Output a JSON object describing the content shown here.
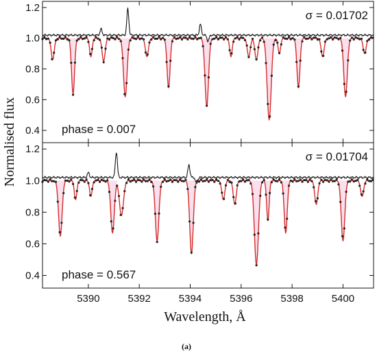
{
  "caption": "(a)",
  "x_axis_label": "Wavelength, Å",
  "y_axis_label": "Normalised flux",
  "chart_data": [
    {
      "type": "line",
      "panel": "top",
      "annotation_sigma": "σ = 0.01702",
      "annotation_phase": "phase = 0.007",
      "xlim": [
        5388.2,
        5401.2
      ],
      "ylim": [
        0.32,
        1.24
      ],
      "xticks": [
        5390,
        5392,
        5394,
        5396,
        5398,
        5400
      ],
      "yticks": [
        0.4,
        0.6,
        0.8,
        1.0,
        1.2
      ],
      "yticklabels": [
        "0.4",
        "0.6",
        "0.8",
        "1.0",
        "1.2"
      ],
      "continuum": 1.0,
      "residual_offset": 1.02,
      "lines": [
        {
          "x": 5388.6,
          "depth": 0.14,
          "w": 0.06
        },
        {
          "x": 5389.4,
          "depth": 0.36,
          "w": 0.06
        },
        {
          "x": 5390.1,
          "depth": 0.12,
          "w": 0.05
        },
        {
          "x": 5390.6,
          "depth": 0.15,
          "w": 0.06
        },
        {
          "x": 5391.45,
          "depth": 0.38,
          "w": 0.07
        },
        {
          "x": 5392.3,
          "depth": 0.12,
          "w": 0.06
        },
        {
          "x": 5393.15,
          "depth": 0.32,
          "w": 0.06
        },
        {
          "x": 5394.65,
          "depth": 0.44,
          "w": 0.07
        },
        {
          "x": 5395.6,
          "depth": 0.12,
          "w": 0.05
        },
        {
          "x": 5396.3,
          "depth": 0.12,
          "w": 0.06
        },
        {
          "x": 5396.6,
          "depth": 0.14,
          "w": 0.06
        },
        {
          "x": 5397.1,
          "depth": 0.53,
          "w": 0.08
        },
        {
          "x": 5397.5,
          "depth": 0.1,
          "w": 0.05
        },
        {
          "x": 5398.25,
          "depth": 0.32,
          "w": 0.06
        },
        {
          "x": 5399.2,
          "depth": 0.12,
          "w": 0.06
        },
        {
          "x": 5400.1,
          "depth": 0.38,
          "w": 0.07
        },
        {
          "x": 5400.85,
          "depth": 0.1,
          "w": 0.06
        }
      ],
      "residual_peaks": [
        {
          "x": 5390.5,
          "amp": 0.04,
          "w": 0.04
        },
        {
          "x": 5391.55,
          "amp": 0.17,
          "w": 0.04
        },
        {
          "x": 5394.4,
          "amp": 0.07,
          "w": 0.04
        },
        {
          "x": 5394.7,
          "amp": -0.04,
          "w": 0.04
        }
      ]
    },
    {
      "type": "line",
      "panel": "bottom",
      "annotation_sigma": "σ = 0.01704",
      "annotation_phase": "phase = 0.567",
      "xlim": [
        5388.2,
        5401.2
      ],
      "ylim": [
        0.32,
        1.24
      ],
      "xticks": [
        5390,
        5392,
        5394,
        5396,
        5398,
        5400
      ],
      "yticks": [
        0.4,
        0.6,
        0.8,
        1.0,
        1.2
      ],
      "yticklabels": [
        "0.4",
        "0.6",
        "0.8",
        "1.0",
        "1.2"
      ],
      "continuum": 1.0,
      "residual_offset": 1.02,
      "lines": [
        {
          "x": 5388.9,
          "depth": 0.35,
          "w": 0.07
        },
        {
          "x": 5389.5,
          "depth": 0.12,
          "w": 0.05
        },
        {
          "x": 5390.1,
          "depth": 0.1,
          "w": 0.05
        },
        {
          "x": 5390.95,
          "depth": 0.33,
          "w": 0.07
        },
        {
          "x": 5391.3,
          "depth": 0.22,
          "w": 0.08
        },
        {
          "x": 5392.7,
          "depth": 0.38,
          "w": 0.07
        },
        {
          "x": 5394.05,
          "depth": 0.46,
          "w": 0.07
        },
        {
          "x": 5395.3,
          "depth": 0.12,
          "w": 0.06
        },
        {
          "x": 5395.75,
          "depth": 0.15,
          "w": 0.06
        },
        {
          "x": 5396.6,
          "depth": 0.53,
          "w": 0.08
        },
        {
          "x": 5397.05,
          "depth": 0.25,
          "w": 0.05
        },
        {
          "x": 5397.75,
          "depth": 0.33,
          "w": 0.06
        },
        {
          "x": 5398.95,
          "depth": 0.15,
          "w": 0.06
        },
        {
          "x": 5400.0,
          "depth": 0.38,
          "w": 0.07
        },
        {
          "x": 5400.75,
          "depth": 0.1,
          "w": 0.06
        }
      ],
      "residual_peaks": [
        {
          "x": 5390.0,
          "amp": 0.03,
          "w": 0.04
        },
        {
          "x": 5391.1,
          "amp": 0.16,
          "w": 0.04
        },
        {
          "x": 5393.95,
          "amp": 0.08,
          "w": 0.04
        },
        {
          "x": 5394.25,
          "amp": -0.04,
          "w": 0.04
        }
      ]
    }
  ]
}
